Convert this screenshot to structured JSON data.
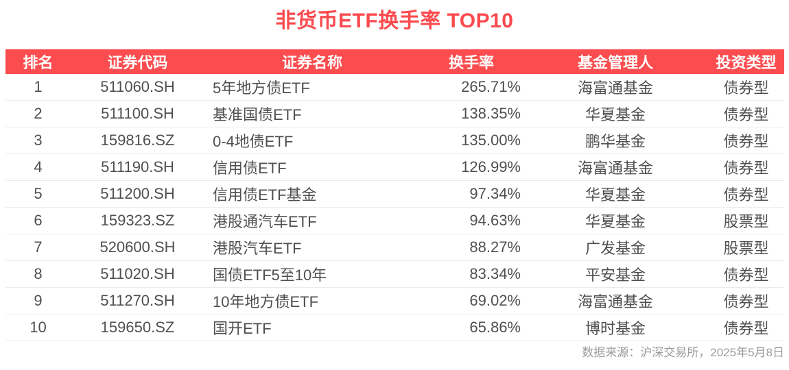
{
  "title": "非货币ETF换手率 TOP10",
  "colors": {
    "accent": "#fb4a4e",
    "header_bg": "#fb4d4f",
    "header_text": "#ffffff",
    "body_text": "#4f4f4f",
    "divider": "#ebebeb",
    "footer_text": "#9b9b9b"
  },
  "footer": {
    "source_note": "数据来源：沪深交易所，2025年5月8日"
  },
  "chart_data": {
    "type": "table",
    "title": "非货币ETF换手率 TOP10",
    "columns": [
      "排名",
      "证券代码",
      "证券名称",
      "换手率",
      "基金管理人",
      "投资类型"
    ],
    "rows": [
      {
        "rank": "1",
        "code": "511060.SH",
        "name": "5年地方债ETF",
        "turnover": "265.71%",
        "manager": "海富通基金",
        "type": "债券型"
      },
      {
        "rank": "2",
        "code": "511100.SH",
        "name": "基准国债ETF",
        "turnover": "138.35%",
        "manager": "华夏基金",
        "type": "债券型"
      },
      {
        "rank": "3",
        "code": "159816.SZ",
        "name": "0-4地债ETF",
        "turnover": "135.00%",
        "manager": "鹏华基金",
        "type": "债券型"
      },
      {
        "rank": "4",
        "code": "511190.SH",
        "name": "信用债ETF",
        "turnover": "126.99%",
        "manager": "海富通基金",
        "type": "债券型"
      },
      {
        "rank": "5",
        "code": "511200.SH",
        "name": "信用债ETF基金",
        "turnover": "97.34%",
        "manager": "华夏基金",
        "type": "债券型"
      },
      {
        "rank": "6",
        "code": "159323.SZ",
        "name": "港股通汽车ETF",
        "turnover": "94.63%",
        "manager": "华夏基金",
        "type": "股票型"
      },
      {
        "rank": "7",
        "code": "520600.SH",
        "name": "港股汽车ETF",
        "turnover": "88.27%",
        "manager": "广发基金",
        "type": "股票型"
      },
      {
        "rank": "8",
        "code": "511020.SH",
        "name": "国债ETF5至10年",
        "turnover": "83.34%",
        "manager": "平安基金",
        "type": "债券型"
      },
      {
        "rank": "9",
        "code": "511270.SH",
        "name": "10年地方债ETF",
        "turnover": "69.02%",
        "manager": "海富通基金",
        "type": "债券型"
      },
      {
        "rank": "10",
        "code": "159650.SZ",
        "name": "国开ETF",
        "turnover": "65.86%",
        "manager": "博时基金",
        "type": "债券型"
      }
    ],
    "turnover_pct": [
      265.71,
      138.35,
      135.0,
      126.99,
      97.34,
      94.63,
      88.27,
      83.34,
      69.02,
      65.86
    ],
    "footnote": "数据来源：沪深交易所，2025年5月8日"
  }
}
